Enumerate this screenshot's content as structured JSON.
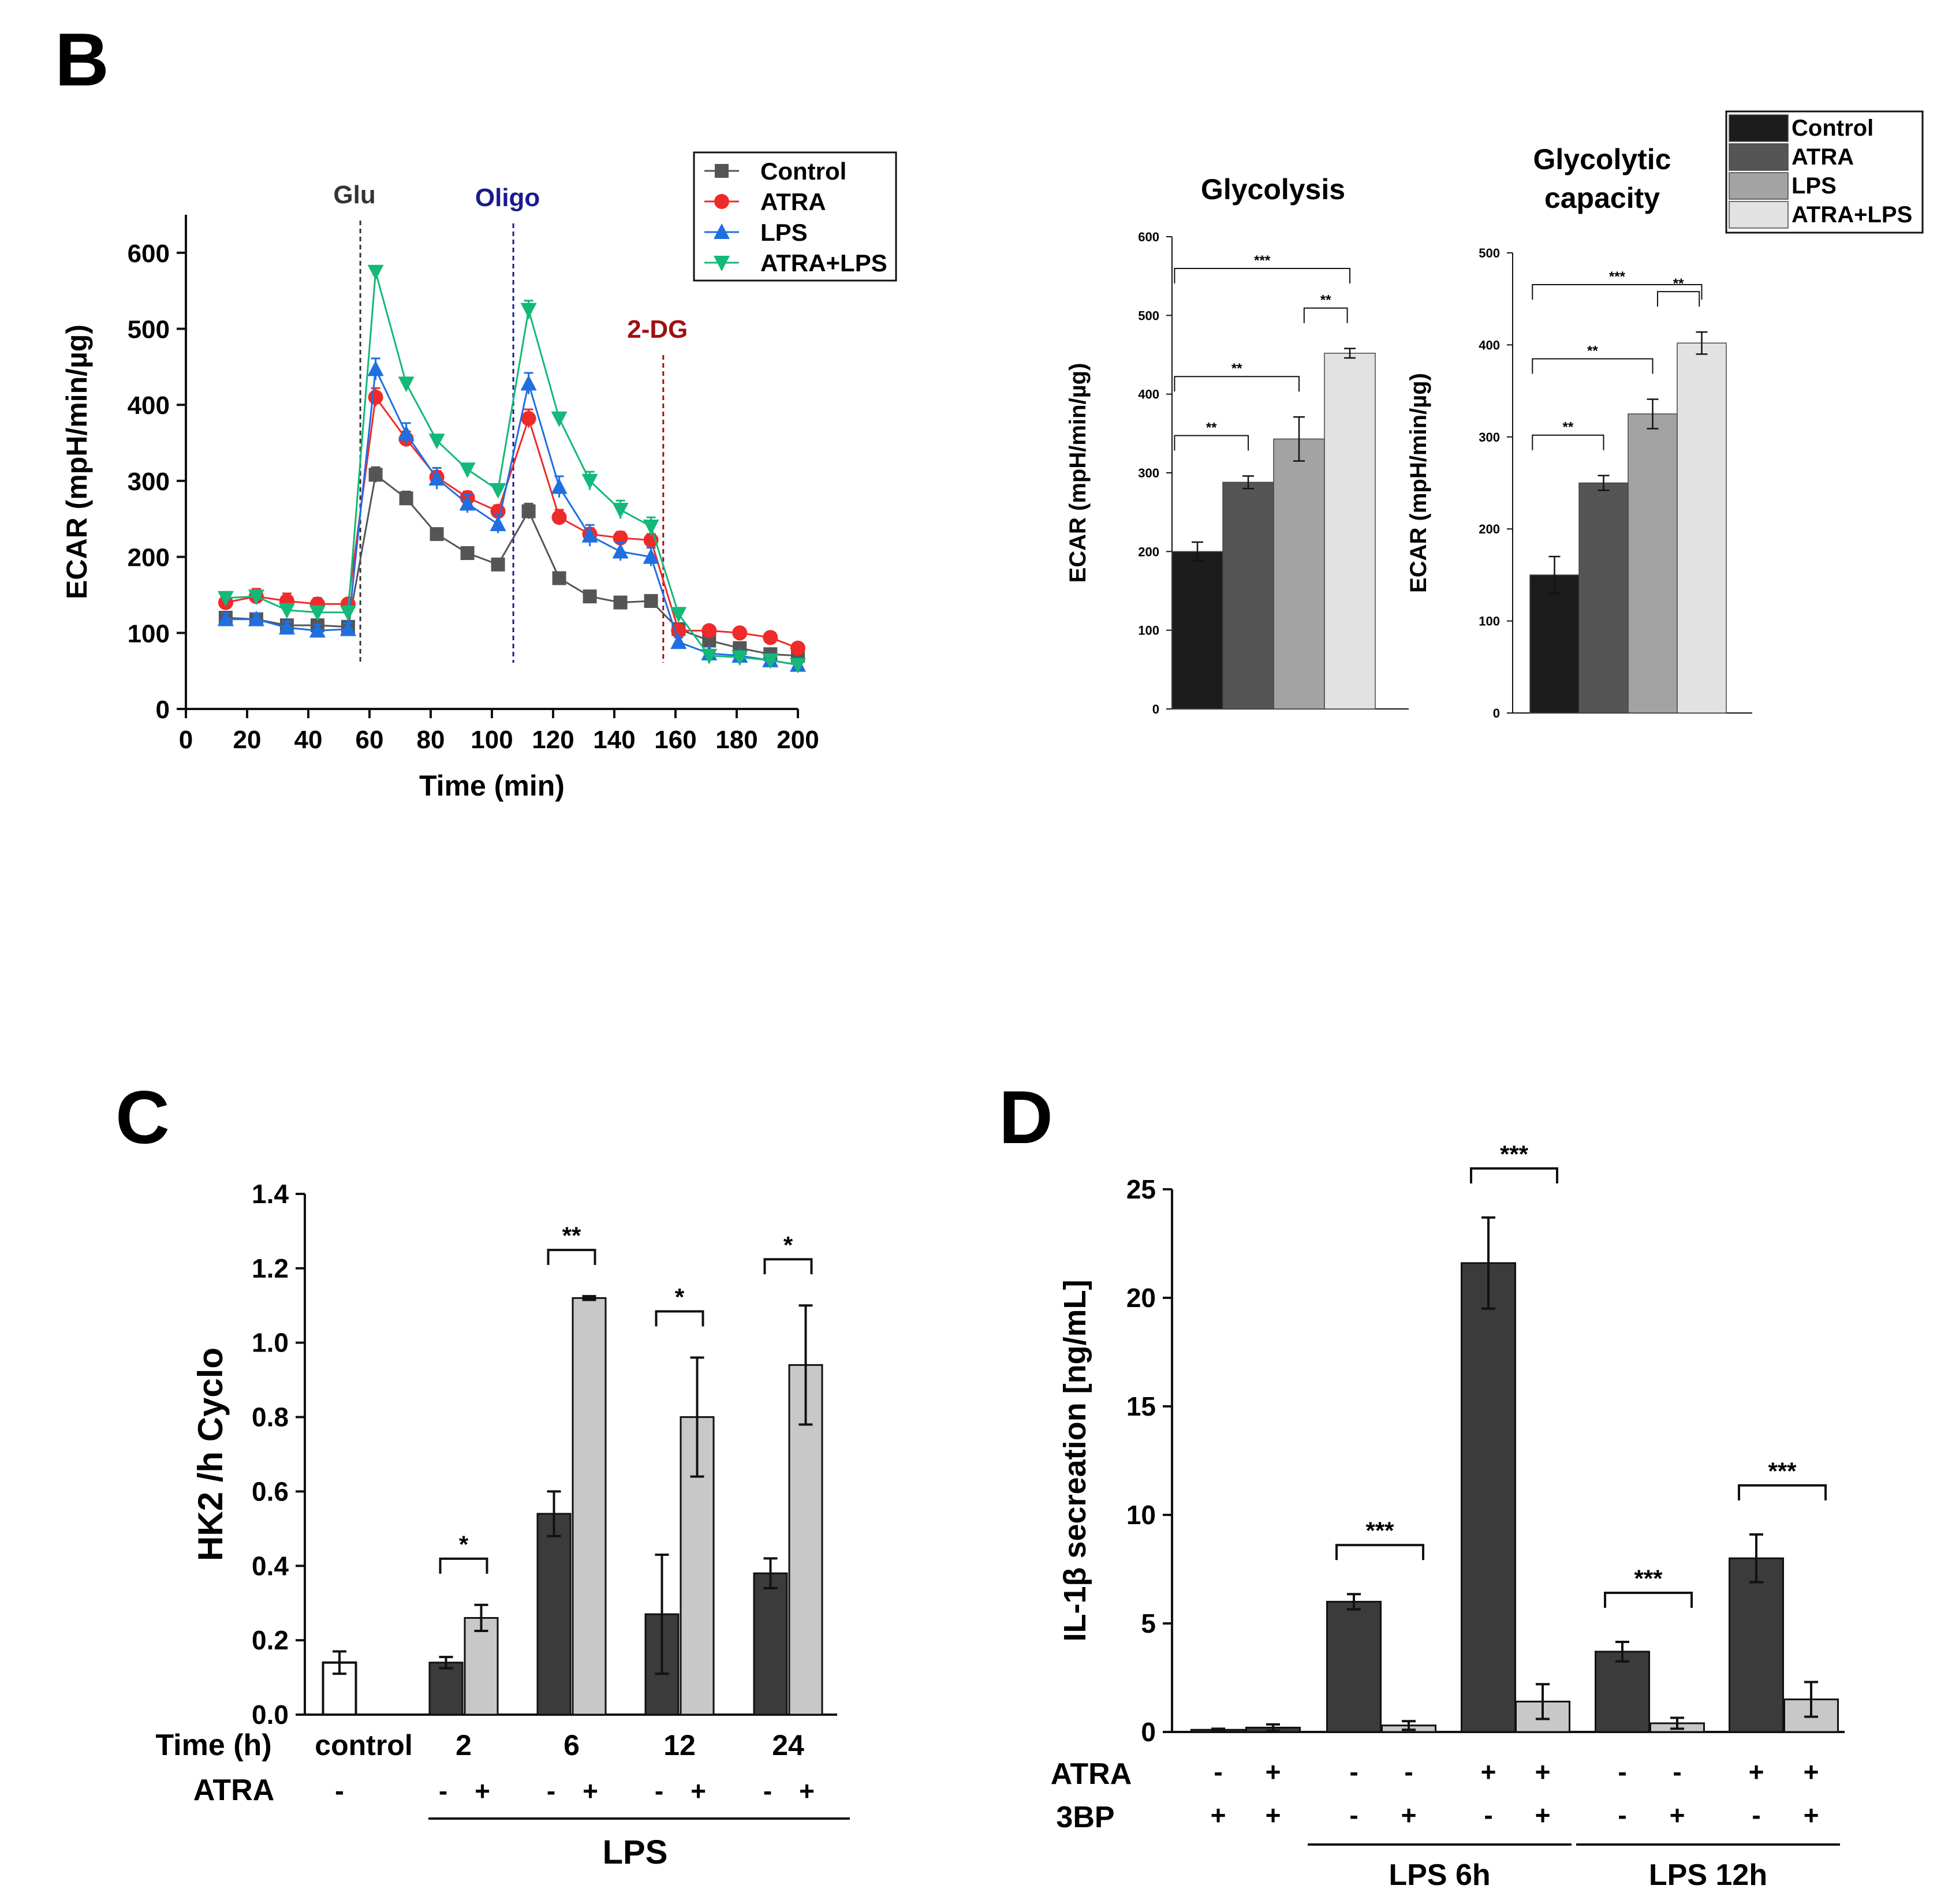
{
  "panel_labels": {
    "b": "B",
    "c": "C",
    "d": "D"
  },
  "colors": {
    "control": "#555555",
    "atra": "#ee2a2a",
    "lps": "#1f6fe0",
    "atra_lps": "#14b878",
    "bar_control": "#1c1c1c",
    "bar_atra": "#555555",
    "bar_lps": "#a3a3a3",
    "bar_atra_lps": "#e2e2e2",
    "dark_bar": "#3b3b3b",
    "light_bar": "#c8c8c8",
    "glu": "#333333",
    "oligo": "#1a1a8c",
    "dg": "#a01010"
  },
  "chart_data": [
    {
      "id": "ecar_timecourse",
      "type": "line",
      "title": "",
      "xlabel": "Time (min)",
      "ylabel": "ECAR (mpH/min/µg)",
      "xlim": [
        0,
        200
      ],
      "ylim": [
        0,
        650
      ],
      "xticks": [
        0,
        20,
        40,
        60,
        80,
        100,
        120,
        140,
        160,
        180,
        200
      ],
      "yticks": [
        0,
        100,
        200,
        300,
        400,
        500,
        600
      ],
      "x": [
        13,
        23,
        33,
        43,
        53,
        62,
        72,
        82,
        92,
        102,
        112,
        122,
        132,
        142,
        152,
        161,
        171,
        181,
        191,
        200
      ],
      "series": [
        {
          "name": "Control",
          "marker": "square",
          "values": [
            120,
            118,
            110,
            110,
            108,
            308,
            277,
            230,
            205,
            190,
            260,
            172,
            148,
            140,
            142,
            105,
            90,
            80,
            72,
            70
          ],
          "errors": [
            6,
            6,
            6,
            5,
            5,
            10,
            9,
            6,
            5,
            5,
            10,
            8,
            6,
            6,
            5,
            6,
            5,
            5,
            5,
            5
          ]
        },
        {
          "name": "ATRA",
          "marker": "circle",
          "values": [
            140,
            148,
            142,
            138,
            138,
            410,
            355,
            305,
            278,
            260,
            382,
            252,
            230,
            225,
            222,
            103,
            103,
            100,
            94,
            80
          ],
          "errors": [
            6,
            10,
            10,
            8,
            6,
            12,
            10,
            8,
            8,
            8,
            12,
            10,
            8,
            8,
            8,
            6,
            6,
            5,
            5,
            5
          ]
        },
        {
          "name": "LPS",
          "marker": "triangle-up",
          "values": [
            118,
            118,
            107,
            103,
            105,
            447,
            362,
            303,
            270,
            243,
            428,
            292,
            228,
            207,
            200,
            88,
            73,
            70,
            64,
            58
          ],
          "errors": [
            8,
            8,
            8,
            8,
            8,
            14,
            14,
            14,
            12,
            12,
            14,
            14,
            14,
            12,
            12,
            6,
            5,
            5,
            5,
            5
          ]
        },
        {
          "name": "ATRA+LPS",
          "marker": "triangle-down",
          "values": [
            146,
            148,
            130,
            127,
            127,
            575,
            428,
            353,
            315,
            288,
            525,
            382,
            300,
            262,
            240,
            125,
            70,
            68,
            64,
            58
          ],
          "errors": [
            8,
            8,
            8,
            8,
            8,
            6,
            8,
            6,
            6,
            6,
            12,
            8,
            12,
            12,
            12,
            8,
            5,
            5,
            5,
            5
          ]
        }
      ],
      "annotations": [
        {
          "label": "Glu",
          "x": 57
        },
        {
          "label": "Oligo",
          "x": 107
        },
        {
          "label": "2-DG",
          "x": 156
        }
      ],
      "legend": "top-right"
    },
    {
      "id": "glycolysis",
      "type": "bar",
      "title": "Glycolysis",
      "ylabel": "ECAR (mpH/min/µg)",
      "ylim": [
        0,
        600
      ],
      "yticks": [
        0,
        100,
        200,
        300,
        400,
        500,
        600
      ],
      "categories": [
        "Control",
        "ATRA",
        "LPS",
        "ATRA+LPS"
      ],
      "values": [
        200,
        288,
        343,
        452
      ],
      "errors": [
        12,
        8,
        28,
        6
      ],
      "significance": [
        {
          "from": 0,
          "to": 1,
          "label": "**"
        },
        {
          "from": 0,
          "to": 2,
          "label": "**"
        },
        {
          "from": 2,
          "to": 3,
          "label": "**"
        },
        {
          "from": 0,
          "to": 3,
          "label": "***"
        }
      ]
    },
    {
      "id": "glycolytic_capacity",
      "type": "bar",
      "title_lines": [
        "Glycolytic",
        "capacity"
      ],
      "ylabel": "ECAR (mpH/min/µg)",
      "ylim": [
        0,
        500
      ],
      "yticks": [
        0,
        100,
        200,
        300,
        400,
        500
      ],
      "categories": [
        "Control",
        "ATRA",
        "LPS",
        "ATRA+LPS"
      ],
      "values": [
        150,
        250,
        325,
        402
      ],
      "errors": [
        20,
        8,
        16,
        12
      ],
      "significance": [
        {
          "from": 0,
          "to": 1,
          "label": "**"
        },
        {
          "from": 0,
          "to": 2,
          "label": "**"
        },
        {
          "from": 2,
          "to": 3,
          "label": "**"
        },
        {
          "from": 0,
          "to": 3,
          "label": "***"
        }
      ],
      "legend": [
        "Control",
        "ATRA",
        "LPS",
        "ATRA+LPS"
      ]
    },
    {
      "id": "hk2",
      "type": "bar",
      "ylabel": "HK2 /h Cyclo",
      "ylim": [
        0,
        1.4
      ],
      "yticks": [
        "0.0",
        "0.2",
        "0.4",
        "0.6",
        "0.8",
        "1.0",
        "1.2",
        "1.4"
      ],
      "time_label": "Time (h)",
      "atra_label": "ATRA",
      "group_label": "LPS",
      "control": {
        "label": "control",
        "value": 0.14,
        "error": 0.03,
        "atra": "-"
      },
      "groups": [
        {
          "label": "2",
          "values": [
            0.14,
            0.26
          ],
          "errors": [
            0.015,
            0.035
          ],
          "sig": "*"
        },
        {
          "label": "6",
          "values": [
            0.54,
            1.12
          ],
          "errors": [
            0.06,
            0.005
          ],
          "sig": "**"
        },
        {
          "label": "12",
          "values": [
            0.27,
            0.8
          ],
          "errors": [
            0.16,
            0.16
          ],
          "sig": "*"
        },
        {
          "label": "24",
          "values": [
            0.38,
            0.94
          ],
          "errors": [
            0.04,
            0.16
          ],
          "sig": "*"
        }
      ],
      "atra_signs": [
        "-",
        "+"
      ]
    },
    {
      "id": "il1b",
      "type": "bar",
      "ylabel": "IL-1β secreation [ng/mL]",
      "ylim": [
        0,
        25
      ],
      "yticks": [
        0,
        5,
        10,
        15,
        20,
        25
      ],
      "values": [
        0.1,
        0.2,
        6.0,
        0.3,
        21.6,
        1.4,
        3.7,
        0.4,
        8.0,
        1.5
      ],
      "errors": [
        0.05,
        0.15,
        0.35,
        0.2,
        2.1,
        0.8,
        0.45,
        0.25,
        1.1,
        0.8
      ],
      "shades": [
        "dark",
        "dark",
        "dark",
        "light",
        "dark",
        "light",
        "dark",
        "light",
        "dark",
        "light"
      ],
      "row_atra_label": "ATRA",
      "row_3bp_label": "3BP",
      "atra": [
        "-",
        "+",
        "-",
        "-",
        "+",
        "+",
        "-",
        "-",
        "+",
        "+"
      ],
      "threebp": [
        "+",
        "+",
        "-",
        "+",
        "-",
        "+",
        "-",
        "+",
        "-",
        "+"
      ],
      "brackets": [
        {
          "from": 2,
          "to": 3,
          "label": "***"
        },
        {
          "from": 4,
          "to": 5,
          "label": "***"
        },
        {
          "from": 6,
          "to": 7,
          "label": "***"
        },
        {
          "from": 8,
          "to": 9,
          "label": "***"
        }
      ],
      "group_labels": [
        {
          "label": "LPS 6h",
          "from": 2,
          "to": 5
        },
        {
          "label": "LPS 12h",
          "from": 6,
          "to": 9
        }
      ]
    }
  ]
}
